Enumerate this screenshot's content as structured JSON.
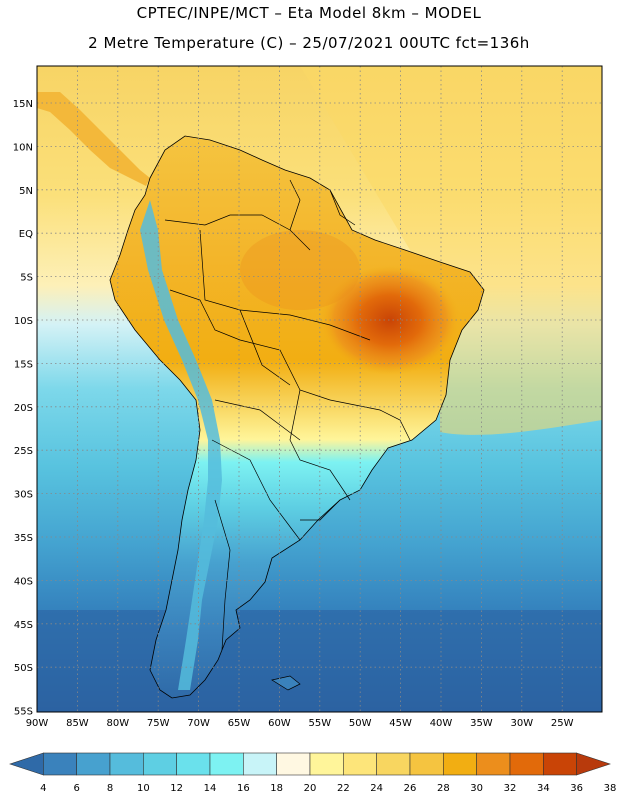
{
  "header": {
    "title_line1": "CPTEC/INPE/MCT –  Eta Model 8km – MODEL",
    "title_line2": "2 Metre Temperature (C) – 25/07/2021 00UTC fct=136h"
  },
  "axes": {
    "lat_labels": [
      "15N",
      "10N",
      "5N",
      "EQ",
      "5S",
      "10S",
      "15S",
      "20S",
      "25S",
      "30S",
      "35S",
      "40S",
      "45S",
      "50S",
      "55S"
    ],
    "lon_labels": [
      "90W",
      "85W",
      "80W",
      "75W",
      "70W",
      "65W",
      "60W",
      "55W",
      "50W",
      "45W",
      "40W",
      "35W",
      "30W",
      "25W"
    ]
  },
  "colorbar": {
    "ticks": [
      "4",
      "6",
      "8",
      "10",
      "12",
      "14",
      "16",
      "18",
      "20",
      "22",
      "24",
      "26",
      "28",
      "30",
      "32",
      "34",
      "36",
      "38"
    ],
    "colors": [
      "#2f6aa8",
      "#3a82bc",
      "#47a1cf",
      "#55bcdc",
      "#5ecfe3",
      "#6ae1ec",
      "#7df2f2",
      "#c8f4f8",
      "#fff8e2",
      "#fff59a",
      "#fde57a",
      "#f8d660",
      "#f5c440",
      "#f2ae12",
      "#ec8e1c",
      "#e26a0a",
      "#c94406",
      "#b83a0c"
    ]
  },
  "map": {
    "ocean_bands": [
      {
        "temp_color": "#fbdc6e"
      },
      {
        "temp_color": "#fdf0b0"
      },
      {
        "temp_color": "#7dd8ea"
      },
      {
        "temp_color": "#5ec7e0"
      },
      {
        "temp_color": "#47a9d4"
      },
      {
        "temp_color": "#3a8cc2"
      },
      {
        "temp_color": "#2f6aa8"
      }
    ]
  }
}
